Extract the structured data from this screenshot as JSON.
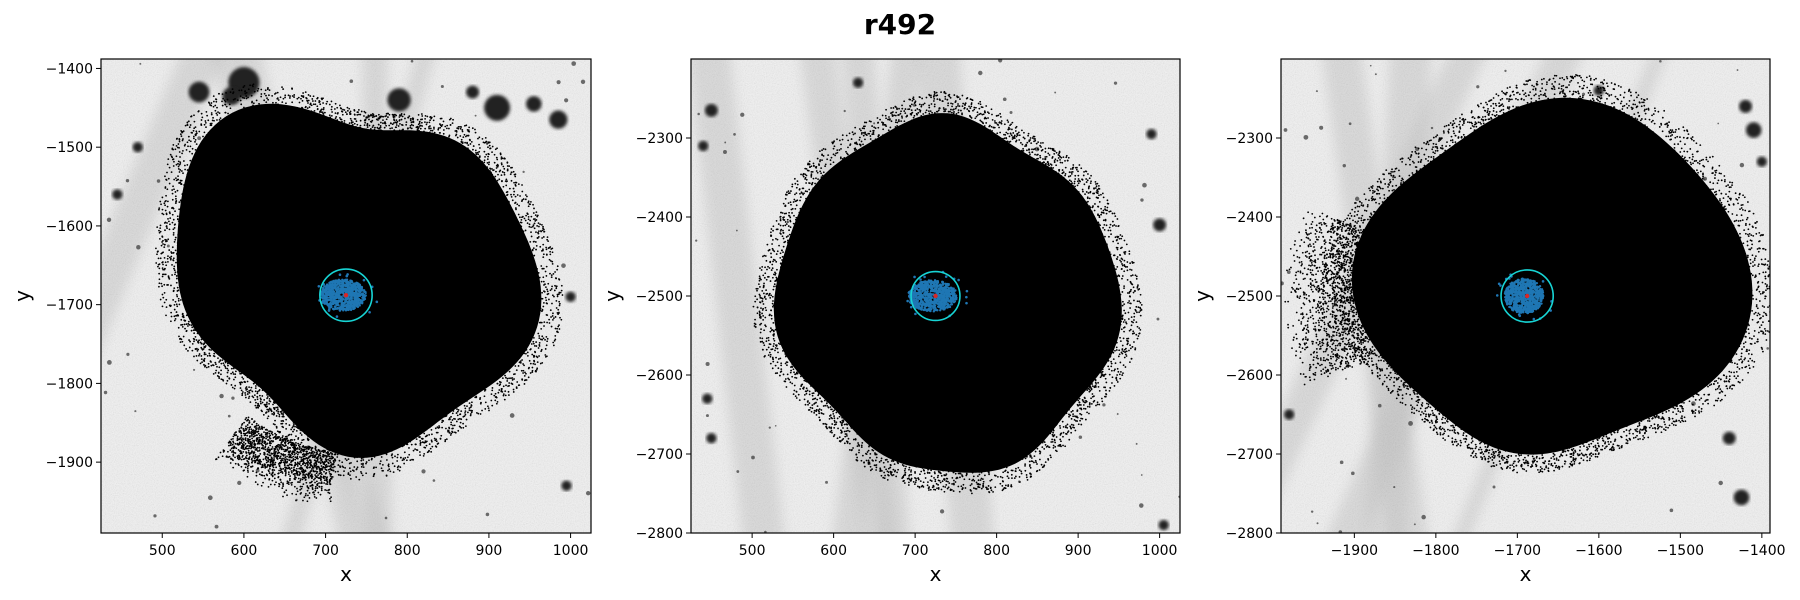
{
  "figure": {
    "title": "r492"
  },
  "colors": {
    "background_light": "#f2f2f2",
    "background_band": "#9c9c9c",
    "particles": "#000000",
    "core_points": "#1f77b4",
    "circle": "#17d4d4",
    "center_marker": "#d62728"
  },
  "chart_data": [
    {
      "type": "scatter",
      "xlabel": "x",
      "ylabel": "y",
      "xlim": [
        425,
        1025
      ],
      "ylim": [
        -1990,
        -1388
      ],
      "xticks": [
        500,
        600,
        700,
        800,
        900,
        1000
      ],
      "yticks": [
        -1400,
        -1500,
        -1600,
        -1700,
        -1800,
        -1900
      ],
      "xtick_labels": [
        "500",
        "600",
        "700",
        "800",
        "900",
        "1000"
      ],
      "ytick_labels": [
        "−1400",
        "−1500",
        "−1600",
        "−1700",
        "−1800",
        "−1900"
      ],
      "center": [
        725,
        -1688
      ],
      "circle_radius": 32,
      "core_extent": [
        28,
        20
      ],
      "series": [
        {
          "role": "particles",
          "color": "#000000"
        },
        {
          "role": "core",
          "color": "#1f77b4"
        },
        {
          "role": "aperture",
          "color": "#17d4d4"
        },
        {
          "role": "center",
          "color": "#d62728"
        }
      ],
      "bright_sources": [
        [
          600,
          -1418,
          12
        ],
        [
          545,
          -1430,
          8
        ],
        [
          585,
          -1435,
          7
        ],
        [
          790,
          -1440,
          9
        ],
        [
          910,
          -1450,
          10
        ],
        [
          955,
          -1445,
          6
        ],
        [
          985,
          -1465,
          7
        ],
        [
          470,
          -1500,
          4
        ],
        [
          1000,
          -1690,
          4
        ],
        [
          995,
          -1930,
          4
        ],
        [
          880,
          -1430,
          5
        ],
        [
          445,
          -1560,
          4
        ]
      ]
    },
    {
      "type": "scatter",
      "xlabel": "x",
      "ylabel": "y",
      "xlim": [
        425,
        1025
      ],
      "ylim": [
        -2800,
        -2200
      ],
      "xticks": [
        500,
        600,
        700,
        800,
        900,
        1000
      ],
      "yticks": [
        -2300,
        -2400,
        -2500,
        -2600,
        -2700,
        -2800
      ],
      "xtick_labels": [
        "500",
        "600",
        "700",
        "800",
        "900",
        "1000"
      ],
      "ytick_labels": [
        "−2300",
        "−2400",
        "−2500",
        "−2600",
        "−2700",
        "−2800"
      ],
      "center": [
        725,
        -2500
      ],
      "circle_radius": 30,
      "core_extent": [
        30,
        20
      ],
      "series": [
        {
          "role": "particles",
          "color": "#000000"
        },
        {
          "role": "core",
          "color": "#1f77b4"
        },
        {
          "role": "aperture",
          "color": "#17d4d4"
        },
        {
          "role": "center",
          "color": "#d62728"
        }
      ],
      "bright_sources": [
        [
          450,
          -2265,
          5
        ],
        [
          440,
          -2310,
          4
        ],
        [
          630,
          -2230,
          4
        ],
        [
          1000,
          -2410,
          5
        ],
        [
          450,
          -2680,
          4
        ],
        [
          445,
          -2630,
          4
        ],
        [
          1005,
          -2790,
          4
        ],
        [
          990,
          -2295,
          4
        ]
      ]
    },
    {
      "type": "scatter",
      "xlabel": "x",
      "ylabel": "y",
      "xlim": [
        -1990,
        -1390
      ],
      "ylim": [
        -2800,
        -2200
      ],
      "xticks": [
        -1900,
        -1800,
        -1700,
        -1600,
        -1500,
        -1400
      ],
      "yticks": [
        -2300,
        -2400,
        -2500,
        -2600,
        -2700,
        -2800
      ],
      "xtick_labels": [
        "−1900",
        "−1800",
        "−1700",
        "−1600",
        "−1500",
        "−1400"
      ],
      "ytick_labels": [
        "−2300",
        "−2400",
        "−2500",
        "−2600",
        "−2700",
        "−2800"
      ],
      "center": [
        -1688,
        -2500
      ],
      "circle_radius": 32,
      "core_extent": [
        24,
        22
      ],
      "series": [
        {
          "role": "particles",
          "color": "#000000"
        },
        {
          "role": "core",
          "color": "#1f77b4"
        },
        {
          "role": "aperture",
          "color": "#17d4d4"
        },
        {
          "role": "center",
          "color": "#d62728"
        }
      ],
      "bright_sources": [
        [
          -1410,
          -2290,
          6
        ],
        [
          -1420,
          -2260,
          5
        ],
        [
          -1400,
          -2330,
          4
        ],
        [
          -1440,
          -2680,
          5
        ],
        [
          -1425,
          -2755,
          6
        ],
        [
          -1980,
          -2650,
          4
        ],
        [
          -1600,
          -2240,
          4
        ]
      ]
    }
  ]
}
